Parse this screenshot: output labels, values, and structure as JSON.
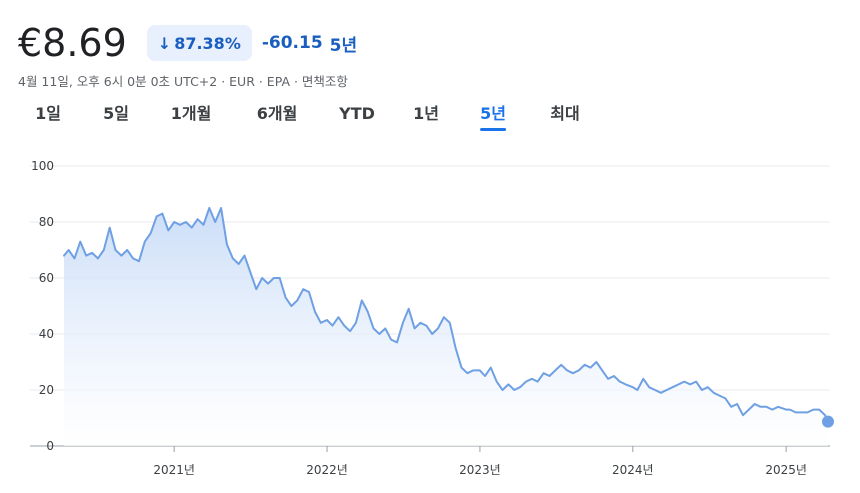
{
  "header": {
    "price": "€8.69",
    "change_percent": "87.38%",
    "change_direction": "down",
    "change_abs": "-60.15",
    "change_period": "5년"
  },
  "meta": {
    "text": "4월 11일, 오후 6시 0분 0초 UTC+2 · EUR · EPA · 면책조항"
  },
  "tabs": [
    {
      "label": "1일",
      "active": false
    },
    {
      "label": "5일",
      "active": false
    },
    {
      "label": "1개월",
      "active": false
    },
    {
      "label": "6개월",
      "active": false
    },
    {
      "label": "YTD",
      "active": false
    },
    {
      "label": "1년",
      "active": false
    },
    {
      "label": "5년",
      "active": true
    },
    {
      "label": "최대",
      "active": false
    }
  ],
  "colors": {
    "line": "#6fa0e3",
    "fill_top": "#c9dcf8",
    "accent": "#1a73e8",
    "badge_bg": "#e8f0fe"
  },
  "chart_data": {
    "type": "area",
    "title": "",
    "xlabel": "",
    "ylabel": "",
    "ylim": [
      0,
      100
    ],
    "y_ticks": [
      0,
      20,
      40,
      60,
      80,
      100
    ],
    "x_ticks": [
      {
        "label": "2021년",
        "x": "2021-01-01"
      },
      {
        "label": "2022년",
        "x": "2022-01-01"
      },
      {
        "label": "2023년",
        "x": "2023-01-01"
      },
      {
        "label": "2024년",
        "x": "2024-01-01"
      },
      {
        "label": "2025년",
        "x": "2025-01-01"
      }
    ],
    "xlim": [
      "2020-04-13",
      "2025-04-11"
    ],
    "grid": "horizontal",
    "series": [
      {
        "name": "",
        "points": [
          [
            "2020-04-13",
            68
          ],
          [
            "2020-04-24",
            70
          ],
          [
            "2020-05-08",
            67
          ],
          [
            "2020-05-22",
            73
          ],
          [
            "2020-06-05",
            68
          ],
          [
            "2020-06-19",
            69
          ],
          [
            "2020-07-03",
            67
          ],
          [
            "2020-07-17",
            70
          ],
          [
            "2020-07-31",
            78
          ],
          [
            "2020-08-14",
            70
          ],
          [
            "2020-08-28",
            68
          ],
          [
            "2020-09-11",
            70
          ],
          [
            "2020-09-25",
            67
          ],
          [
            "2020-10-09",
            66
          ],
          [
            "2020-10-23",
            73
          ],
          [
            "2020-11-06",
            76
          ],
          [
            "2020-11-20",
            82
          ],
          [
            "2020-12-04",
            83
          ],
          [
            "2020-12-18",
            77
          ],
          [
            "2021-01-01",
            80
          ],
          [
            "2021-01-15",
            79
          ],
          [
            "2021-01-29",
            80
          ],
          [
            "2021-02-12",
            78
          ],
          [
            "2021-02-26",
            81
          ],
          [
            "2021-03-12",
            79
          ],
          [
            "2021-03-26",
            85
          ],
          [
            "2021-04-09",
            80
          ],
          [
            "2021-04-23",
            85
          ],
          [
            "2021-05-07",
            72
          ],
          [
            "2021-05-21",
            67
          ],
          [
            "2021-06-04",
            65
          ],
          [
            "2021-06-18",
            68
          ],
          [
            "2021-07-02",
            62
          ],
          [
            "2021-07-16",
            56
          ],
          [
            "2021-07-30",
            60
          ],
          [
            "2021-08-13",
            58
          ],
          [
            "2021-08-27",
            60
          ],
          [
            "2021-09-10",
            60
          ],
          [
            "2021-09-24",
            53
          ],
          [
            "2021-10-08",
            50
          ],
          [
            "2021-10-22",
            52
          ],
          [
            "2021-11-05",
            56
          ],
          [
            "2021-11-19",
            55
          ],
          [
            "2021-12-03",
            48
          ],
          [
            "2021-12-17",
            44
          ],
          [
            "2022-01-01",
            45
          ],
          [
            "2022-01-14",
            43
          ],
          [
            "2022-01-28",
            46
          ],
          [
            "2022-02-11",
            43
          ],
          [
            "2022-02-25",
            41
          ],
          [
            "2022-03-11",
            44
          ],
          [
            "2022-03-25",
            52
          ],
          [
            "2022-04-08",
            48
          ],
          [
            "2022-04-22",
            42
          ],
          [
            "2022-05-06",
            40
          ],
          [
            "2022-05-20",
            42
          ],
          [
            "2022-06-03",
            38
          ],
          [
            "2022-06-17",
            37
          ],
          [
            "2022-07-01",
            44
          ],
          [
            "2022-07-15",
            49
          ],
          [
            "2022-07-29",
            42
          ],
          [
            "2022-08-12",
            44
          ],
          [
            "2022-08-26",
            43
          ],
          [
            "2022-09-09",
            40
          ],
          [
            "2022-09-23",
            42
          ],
          [
            "2022-10-07",
            46
          ],
          [
            "2022-10-21",
            44
          ],
          [
            "2022-11-04",
            35
          ],
          [
            "2022-11-18",
            28
          ],
          [
            "2022-12-02",
            26
          ],
          [
            "2022-12-16",
            27
          ],
          [
            "2023-01-01",
            27
          ],
          [
            "2023-01-13",
            25
          ],
          [
            "2023-01-27",
            28
          ],
          [
            "2023-02-10",
            23
          ],
          [
            "2023-02-24",
            20
          ],
          [
            "2023-03-10",
            22
          ],
          [
            "2023-03-24",
            20
          ],
          [
            "2023-04-07",
            21
          ],
          [
            "2023-04-21",
            23
          ],
          [
            "2023-05-05",
            24
          ],
          [
            "2023-05-19",
            23
          ],
          [
            "2023-06-02",
            26
          ],
          [
            "2023-06-16",
            25
          ],
          [
            "2023-06-30",
            27
          ],
          [
            "2023-07-14",
            29
          ],
          [
            "2023-07-28",
            27
          ],
          [
            "2023-08-11",
            26
          ],
          [
            "2023-08-25",
            27
          ],
          [
            "2023-09-08",
            29
          ],
          [
            "2023-09-22",
            28
          ],
          [
            "2023-10-06",
            30
          ],
          [
            "2023-10-20",
            27
          ],
          [
            "2023-11-03",
            24
          ],
          [
            "2023-11-17",
            25
          ],
          [
            "2023-12-01",
            23
          ],
          [
            "2023-12-15",
            22
          ],
          [
            "2024-01-01",
            21
          ],
          [
            "2024-01-12",
            20
          ],
          [
            "2024-01-26",
            24
          ],
          [
            "2024-02-09",
            21
          ],
          [
            "2024-02-23",
            20
          ],
          [
            "2024-03-08",
            19
          ],
          [
            "2024-03-22",
            20
          ],
          [
            "2024-04-05",
            21
          ],
          [
            "2024-04-19",
            22
          ],
          [
            "2024-05-03",
            23
          ],
          [
            "2024-05-17",
            22
          ],
          [
            "2024-05-31",
            23
          ],
          [
            "2024-06-14",
            20
          ],
          [
            "2024-06-28",
            21
          ],
          [
            "2024-07-12",
            19
          ],
          [
            "2024-07-26",
            18
          ],
          [
            "2024-08-09",
            17
          ],
          [
            "2024-08-23",
            14
          ],
          [
            "2024-09-06",
            15
          ],
          [
            "2024-09-20",
            11
          ],
          [
            "2024-10-04",
            13
          ],
          [
            "2024-10-18",
            15
          ],
          [
            "2024-11-01",
            14
          ],
          [
            "2024-11-15",
            14
          ],
          [
            "2024-11-29",
            13
          ],
          [
            "2024-12-13",
            14
          ],
          [
            "2025-01-01",
            13
          ],
          [
            "2025-01-10",
            13
          ],
          [
            "2025-01-24",
            12
          ],
          [
            "2025-02-07",
            12
          ],
          [
            "2025-02-21",
            12
          ],
          [
            "2025-03-07",
            13
          ],
          [
            "2025-03-21",
            13
          ],
          [
            "2025-04-04",
            11
          ],
          [
            "2025-04-11",
            8.69
          ]
        ]
      }
    ]
  }
}
